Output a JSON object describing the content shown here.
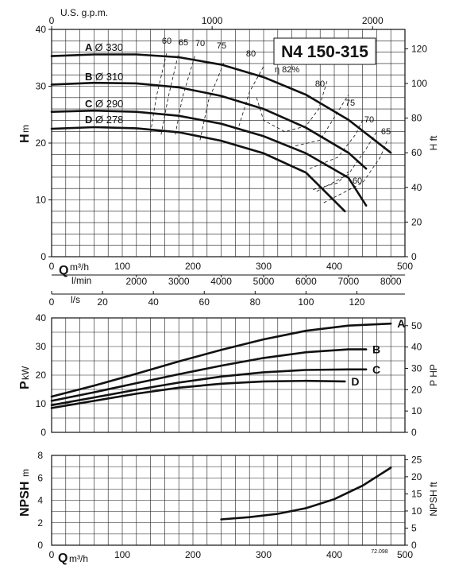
{
  "title": "N4 150-315",
  "figure_code": "72.098",
  "chart_data": [
    {
      "type": "line",
      "panel": "head",
      "ylabel": "H",
      "yunit": "m",
      "ylabel_right": "H ft",
      "xlim": [
        0,
        500
      ],
      "ylim": [
        0,
        40
      ],
      "y_ticks": [
        "0",
        "10",
        "20",
        "30",
        "40"
      ],
      "y_right_ticks": [
        "0",
        "20",
        "40",
        "60",
        "80",
        "100",
        "120"
      ],
      "top_axis_label": "U.S. g.p.m.",
      "top_ticks": [
        "0",
        "1000",
        "2000"
      ],
      "series": [
        {
          "name": "A",
          "diameter": "Ø 330",
          "x": [
            0,
            60,
            120,
            180,
            240,
            300,
            360,
            420,
            480
          ],
          "y": [
            35.3,
            35.6,
            35.6,
            35.1,
            33.8,
            31.6,
            28.5,
            24.1,
            18.3
          ]
        },
        {
          "name": "B",
          "diameter": "Ø 310",
          "x": [
            0,
            60,
            120,
            180,
            240,
            300,
            360,
            420,
            445
          ],
          "y": [
            30.3,
            30.6,
            30.5,
            29.8,
            28.3,
            26.0,
            22.7,
            18.3,
            15.5
          ]
        },
        {
          "name": "C",
          "diameter": "Ø 290",
          "x": [
            0,
            60,
            120,
            180,
            240,
            300,
            360,
            420,
            445
          ],
          "y": [
            25.5,
            25.7,
            25.5,
            24.8,
            23.4,
            21.2,
            18.2,
            13.9,
            9.0
          ]
        },
        {
          "name": "D",
          "diameter": "Ø 278",
          "x": [
            0,
            60,
            120,
            180,
            240,
            300,
            360,
            415
          ],
          "y": [
            22.5,
            22.8,
            22.6,
            21.9,
            20.4,
            18.2,
            14.8,
            8.0
          ]
        }
      ],
      "efficiency_label": "η 82%",
      "efficiency_curves": [
        {
          "label": "60",
          "x": [
            140,
            148,
            163
          ],
          "y": [
            21.8,
            28.0,
            36.0
          ]
        },
        {
          "label": "65",
          "x": [
            155,
            165,
            180
          ],
          "y": [
            21.5,
            28.0,
            36.0
          ]
        },
        {
          "label": "70",
          "x": [
            175,
            185,
            203
          ],
          "y": [
            21.5,
            28.0,
            35.5
          ]
        },
        {
          "label": "75",
          "x": [
            210,
            222,
            245
          ],
          "y": [
            20.5,
            27.5,
            34.5
          ]
        },
        {
          "label": "80",
          "x": [
            265,
            280,
            300
          ],
          "y": [
            23.0,
            29.0,
            33.5
          ]
        },
        {
          "label": "82%",
          "x": [
            290,
            300,
            330,
            360,
            378,
            390
          ],
          "y": [
            28.0,
            24.0,
            22.0,
            23.0,
            26.0,
            31.0
          ]
        },
        {
          "label": "80",
          "x": [
            345,
            380,
            400,
            420
          ],
          "y": [
            19.5,
            20.5,
            24.5,
            28.5
          ]
        },
        {
          "label": "75",
          "x": [
            365,
            405,
            430,
            440
          ],
          "y": [
            15.5,
            17.5,
            21.5,
            24.0
          ]
        },
        {
          "label": "70",
          "x": [
            375,
            420,
            445,
            460
          ],
          "y": [
            11.5,
            14.5,
            19.0,
            22.0
          ]
        },
        {
          "label": "65",
          "x": [
            385,
            440,
            465,
            475
          ],
          "y": [
            9.5,
            13.0,
            17.5,
            20.5
          ]
        },
        {
          "label": "60",
          "x": [
            370,
            405,
            420
          ],
          "y": [
            11.8,
            13.0,
            15.0
          ]
        }
      ]
    },
    {
      "type": "line",
      "panel": "power",
      "ylabel": "P",
      "yunit": "kW",
      "ylabel_right": "P HP",
      "xlim": [
        0,
        500
      ],
      "ylim": [
        0,
        40
      ],
      "y_ticks": [
        "0",
        "10",
        "20",
        "30",
        "40"
      ],
      "y_right_ticks": [
        "0",
        "10",
        "20",
        "30",
        "40",
        "50"
      ],
      "series": [
        {
          "name": "A",
          "x": [
            0,
            60,
            120,
            180,
            240,
            300,
            360,
            420,
            480
          ],
          "y": [
            12.5,
            16.3,
            20.5,
            24.8,
            28.8,
            32.5,
            35.5,
            37.3,
            38.0
          ]
        },
        {
          "name": "B",
          "x": [
            0,
            60,
            120,
            180,
            240,
            300,
            360,
            420,
            445
          ],
          "y": [
            11.0,
            14.0,
            17.2,
            20.3,
            23.3,
            26.0,
            28.0,
            29.0,
            29.0
          ]
        },
        {
          "name": "C",
          "x": [
            0,
            60,
            120,
            180,
            240,
            300,
            360,
            420,
            445
          ],
          "y": [
            9.5,
            12.2,
            14.9,
            17.4,
            19.5,
            21.0,
            21.8,
            22.0,
            22.0
          ]
        },
        {
          "name": "D",
          "x": [
            0,
            60,
            120,
            180,
            240,
            300,
            360,
            415
          ],
          "y": [
            8.5,
            11.0,
            13.5,
            15.6,
            17.0,
            17.8,
            18.0,
            17.8
          ]
        }
      ]
    },
    {
      "type": "line",
      "panel": "npsh",
      "ylabel": "NPSH",
      "yunit": "m",
      "ylabel_right": "NPSH ft",
      "xlabel": "Q",
      "xunit": "m³/h",
      "xlim": [
        0,
        500
      ],
      "ylim": [
        0,
        8
      ],
      "y_ticks": [
        "0",
        "2",
        "4",
        "6",
        "8"
      ],
      "y_right_ticks": [
        "0",
        "5",
        "10",
        "15",
        "20",
        "25"
      ],
      "series": [
        {
          "name": "NPSH",
          "x": [
            240,
            280,
            320,
            360,
            400,
            440,
            480
          ],
          "y": [
            2.3,
            2.5,
            2.8,
            3.3,
            4.1,
            5.3,
            6.9
          ]
        }
      ]
    }
  ],
  "x_axes": {
    "q_m3h": {
      "label": "Q",
      "unit": "m³/h",
      "ticks": [
        "0",
        "100",
        "200",
        "300",
        "400",
        "500"
      ]
    },
    "l_min": {
      "label": "l/min",
      "ticks": [
        "2000",
        "3000",
        "4000",
        "5000",
        "6000",
        "7000",
        "8000"
      ]
    },
    "l_s": {
      "label": "l/s",
      "ticks": [
        "0",
        "20",
        "40",
        "60",
        "80",
        "100",
        "120"
      ]
    }
  }
}
